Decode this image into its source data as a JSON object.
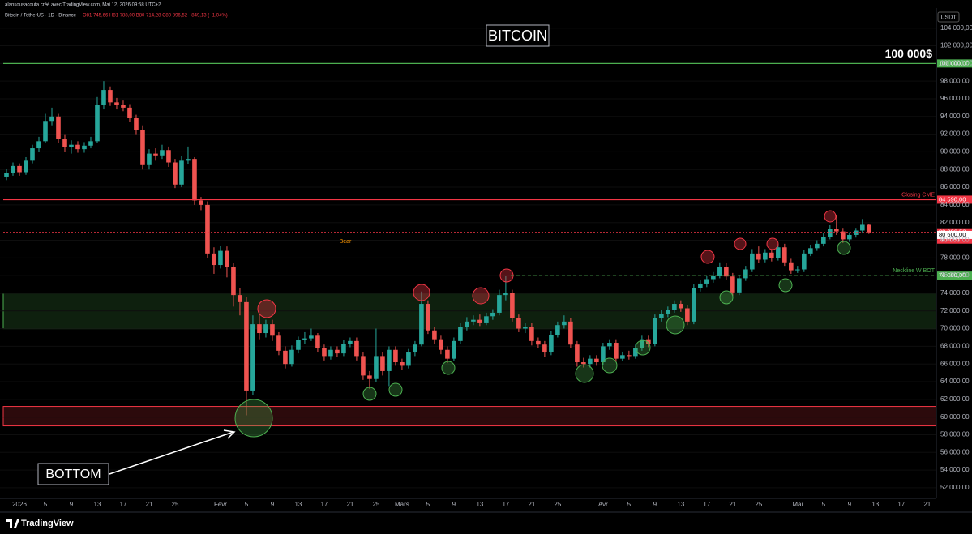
{
  "header": {
    "credit": "alansousacouta créé avec TradingView.com, Mai 12, 2026 09:58 UTC+2",
    "symbol": "Bitcoin / TetherUS · 1D · Binance",
    "ohlc": "O81 745,66 H81 788,00 B80 714,28 C80 896,52 −849,13 (−1,04%)",
    "currency": "USDT"
  },
  "footer": {
    "brand": "TradingView"
  },
  "chart_data": {
    "type": "candlestick",
    "title": "BITCOIN",
    "up_color": "#26a69a",
    "down_color": "#ef5350",
    "candles": [
      [
        87200,
        88100,
        86800,
        87600
      ],
      [
        87600,
        88800,
        87300,
        88400
      ],
      [
        88400,
        88700,
        87300,
        87700
      ],
      [
        87700,
        89400,
        87400,
        89000
      ],
      [
        89000,
        90800,
        88700,
        90400
      ],
      [
        90400,
        91700,
        90000,
        91200
      ],
      [
        91200,
        94300,
        91000,
        93500
      ],
      [
        93500,
        95000,
        93000,
        94000
      ],
      [
        94000,
        94300,
        91000,
        91500
      ],
      [
        91500,
        92000,
        90000,
        90500
      ],
      [
        90500,
        91300,
        89800,
        90800
      ],
      [
        90800,
        91200,
        89900,
        90300
      ],
      [
        90300,
        91100,
        89900,
        90700
      ],
      [
        90700,
        91700,
        90400,
        91200
      ],
      [
        91200,
        96200,
        91000,
        95300
      ],
      [
        95300,
        98000,
        94800,
        97000
      ],
      [
        97000,
        97400,
        95200,
        95600
      ],
      [
        95600,
        96100,
        94800,
        95300
      ],
      [
        95300,
        95800,
        94600,
        95000
      ],
      [
        95000,
        95400,
        93400,
        93800
      ],
      [
        93800,
        94200,
        92000,
        92500
      ],
      [
        92500,
        93000,
        88000,
        88500
      ],
      [
        88500,
        90300,
        88000,
        89800
      ],
      [
        89800,
        90400,
        89000,
        89600
      ],
      [
        89600,
        90800,
        89200,
        90200
      ],
      [
        90200,
        90600,
        88300,
        88800
      ],
      [
        88800,
        89200,
        85900,
        86300
      ],
      [
        86300,
        89500,
        86000,
        89000
      ],
      [
        89000,
        90600,
        88600,
        89200
      ],
      [
        89200,
        89400,
        84000,
        84500
      ],
      [
        84500,
        84900,
        83400,
        84000
      ],
      [
        84000,
        84400,
        78000,
        78500
      ],
      [
        78500,
        79200,
        76200,
        77200
      ],
      [
        77200,
        79400,
        76800,
        78800
      ],
      [
        78800,
        79300,
        75800,
        77000
      ],
      [
        77000,
        77400,
        72500,
        73800
      ],
      [
        73800,
        74600,
        71500,
        73000
      ],
      [
        73000,
        73600,
        60200,
        63000
      ],
      [
        63000,
        71500,
        62500,
        70500
      ],
      [
        70500,
        71600,
        68800,
        69500
      ],
      [
        69500,
        71000,
        69000,
        70500
      ],
      [
        70500,
        71000,
        68600,
        69200
      ],
      [
        69200,
        69600,
        67000,
        67500
      ],
      [
        67500,
        68000,
        65500,
        66000
      ],
      [
        66000,
        68100,
        65700,
        67600
      ],
      [
        67600,
        69100,
        67200,
        68700
      ],
      [
        68700,
        69600,
        68300,
        68900
      ],
      [
        68900,
        70000,
        68600,
        69200
      ],
      [
        69200,
        69500,
        67300,
        67800
      ],
      [
        67800,
        68200,
        66400,
        66900
      ],
      [
        66900,
        68000,
        66500,
        67600
      ],
      [
        67600,
        68000,
        66800,
        67200
      ],
      [
        67200,
        68700,
        66900,
        68300
      ],
      [
        68300,
        69000,
        67900,
        68600
      ],
      [
        68600,
        69000,
        66400,
        66900
      ],
      [
        66900,
        67300,
        64200,
        64700
      ],
      [
        64700,
        65200,
        63200,
        64300
      ],
      [
        64300,
        70000,
        64000,
        66900
      ],
      [
        66900,
        67300,
        64700,
        65200
      ],
      [
        65200,
        68000,
        63500,
        67600
      ],
      [
        67600,
        68000,
        65800,
        66200
      ],
      [
        66200,
        66600,
        65300,
        65800
      ],
      [
        65800,
        67700,
        65500,
        67300
      ],
      [
        67300,
        68600,
        66900,
        68200
      ],
      [
        68200,
        74200,
        68000,
        72800
      ],
      [
        72800,
        73200,
        69400,
        69800
      ],
      [
        69800,
        70200,
        68300,
        68800
      ],
      [
        68800,
        69200,
        67100,
        67600
      ],
      [
        67600,
        68000,
        66100,
        66600
      ],
      [
        66600,
        69000,
        66300,
        68600
      ],
      [
        68600,
        70600,
        68300,
        70200
      ],
      [
        70200,
        71300,
        69800,
        70800
      ],
      [
        70800,
        71500,
        70400,
        71000
      ],
      [
        71000,
        71600,
        70300,
        70700
      ],
      [
        70700,
        71800,
        70400,
        71400
      ],
      [
        71400,
        72200,
        71000,
        71800
      ],
      [
        71800,
        74400,
        71500,
        73800
      ],
      [
        73800,
        76000,
        73200,
        74000
      ],
      [
        74000,
        74400,
        70800,
        71200
      ],
      [
        71200,
        71600,
        69600,
        70000
      ],
      [
        70000,
        70600,
        69500,
        70200
      ],
      [
        70200,
        70600,
        68100,
        68600
      ],
      [
        68600,
        69000,
        67800,
        68200
      ],
      [
        68200,
        68600,
        66800,
        67300
      ],
      [
        67300,
        69700,
        67000,
        69300
      ],
      [
        69300,
        70800,
        69000,
        70400
      ],
      [
        70400,
        71500,
        70000,
        70800
      ],
      [
        70800,
        71200,
        67800,
        68200
      ],
      [
        68200,
        68600,
        65700,
        66200
      ],
      [
        66200,
        66700,
        65600,
        66000
      ],
      [
        66000,
        67000,
        65600,
        66600
      ],
      [
        66600,
        67000,
        65800,
        66200
      ],
      [
        66200,
        68400,
        65900,
        68000
      ],
      [
        68000,
        68800,
        67600,
        68400
      ],
      [
        68400,
        68800,
        66200,
        66600
      ],
      [
        66600,
        67400,
        66300,
        67000
      ],
      [
        67000,
        67500,
        66500,
        66900
      ],
      [
        66900,
        68200,
        66600,
        67800
      ],
      [
        67800,
        69200,
        67500,
        68800
      ],
      [
        68800,
        69200,
        67900,
        68300
      ],
      [
        68300,
        71600,
        68000,
        71200
      ],
      [
        71200,
        72100,
        70800,
        71700
      ],
      [
        71700,
        72500,
        71300,
        72100
      ],
      [
        72100,
        73200,
        71800,
        72800
      ],
      [
        72800,
        73200,
        71900,
        72300
      ],
      [
        72300,
        72700,
        70400,
        70800
      ],
      [
        70800,
        75000,
        70500,
        74600
      ],
      [
        74600,
        75500,
        74200,
        75100
      ],
      [
        75100,
        76000,
        74700,
        75600
      ],
      [
        75600,
        76400,
        75200,
        76000
      ],
      [
        76000,
        77500,
        75700,
        77000
      ],
      [
        77000,
        77400,
        75500,
        75900
      ],
      [
        75900,
        76300,
        73700,
        74100
      ],
      [
        74100,
        76100,
        73800,
        75700
      ],
      [
        75700,
        77100,
        75400,
        76700
      ],
      [
        76700,
        79000,
        76400,
        78500
      ],
      [
        78500,
        79300,
        77400,
        77800
      ],
      [
        77800,
        79000,
        77500,
        78600
      ],
      [
        78600,
        79000,
        77600,
        78000
      ],
      [
        78000,
        79600,
        77700,
        79200
      ],
      [
        79200,
        79600,
        77100,
        77500
      ],
      [
        77500,
        77900,
        76200,
        76600
      ],
      [
        76600,
        77100,
        76300,
        76700
      ],
      [
        76700,
        78900,
        76400,
        78500
      ],
      [
        78500,
        79500,
        78200,
        79100
      ],
      [
        79100,
        80000,
        78800,
        79600
      ],
      [
        79600,
        80800,
        79300,
        80400
      ],
      [
        80400,
        81700,
        80100,
        81300
      ],
      [
        81300,
        82900,
        80600,
        81000
      ],
      [
        81000,
        81400,
        79700,
        80100
      ],
      [
        80100,
        80900,
        79800,
        80600
      ],
      [
        80600,
        81400,
        80300,
        81100
      ],
      [
        81100,
        82400,
        80800,
        81745.66
      ],
      [
        81745.66,
        81788,
        80714.28,
        80896.52
      ]
    ],
    "ylim": [
      50800,
      105900
    ],
    "yticks": [
      {
        "value": 52000,
        "label": "52 000,00"
      },
      {
        "value": 54000,
        "label": "54 000,00"
      },
      {
        "value": 56000,
        "label": "56 000,00"
      },
      {
        "value": 58000,
        "label": "58 000,00"
      },
      {
        "value": 60000,
        "label": "60 000,00"
      },
      {
        "value": 62000,
        "label": "62 000,00"
      },
      {
        "value": 64000,
        "label": "64 000,00"
      },
      {
        "value": 66000,
        "label": "66 000,00"
      },
      {
        "value": 68000,
        "label": "68 000,00"
      },
      {
        "value": 70000,
        "label": "70 000,00"
      },
      {
        "value": 72000,
        "label": "72 000,00"
      },
      {
        "value": 74000,
        "label": "74 000,00"
      },
      {
        "value": 76000,
        "label": "76 000,00"
      },
      {
        "value": 78000,
        "label": "78 000,00"
      },
      {
        "value": 80000,
        "label": "80 000,00"
      },
      {
        "value": 82000,
        "label": "82 000,00"
      },
      {
        "value": 84000,
        "label": "84 000,00"
      },
      {
        "value": 86000,
        "label": "86 000,00"
      },
      {
        "value": 88000,
        "label": "88 000,00"
      },
      {
        "value": 90000,
        "label": "90 000,00"
      },
      {
        "value": 92000,
        "label": "92 000,00"
      },
      {
        "value": 94000,
        "label": "94 000,00"
      },
      {
        "value": 96000,
        "label": "96 000,00"
      },
      {
        "value": 98000,
        "label": "98 000,00"
      },
      {
        "value": 100000,
        "label": "100 000,00"
      },
      {
        "value": 102000,
        "label": "102 000,00"
      },
      {
        "value": 104000,
        "label": "104 000,00"
      }
    ],
    "xlim": [
      -1,
      143.4
    ],
    "xticks": [
      {
        "value": 2,
        "label": "2026"
      },
      {
        "value": 6,
        "label": "5"
      },
      {
        "value": 10,
        "label": "9"
      },
      {
        "value": 14,
        "label": "13"
      },
      {
        "value": 18,
        "label": "17"
      },
      {
        "value": 22,
        "label": "21"
      },
      {
        "value": 26,
        "label": "25"
      },
      {
        "value": 33,
        "label": "Févr"
      },
      {
        "value": 37,
        "label": "5"
      },
      {
        "value": 41,
        "label": "9"
      },
      {
        "value": 45,
        "label": "13"
      },
      {
        "value": 49,
        "label": "17"
      },
      {
        "value": 53,
        "label": "21"
      },
      {
        "value": 57,
        "label": "25"
      },
      {
        "value": 61,
        "label": "Mars"
      },
      {
        "value": 65,
        "label": "5"
      },
      {
        "value": 69,
        "label": "9"
      },
      {
        "value": 73,
        "label": "13"
      },
      {
        "value": 77,
        "label": "17"
      },
      {
        "value": 81,
        "label": "21"
      },
      {
        "value": 85,
        "label": "25"
      },
      {
        "value": 92,
        "label": "Avr"
      },
      {
        "value": 96,
        "label": "5"
      },
      {
        "value": 100,
        "label": "9"
      },
      {
        "value": 104,
        "label": "13"
      },
      {
        "value": 108,
        "label": "17"
      },
      {
        "value": 112,
        "label": "21"
      },
      {
        "value": 116,
        "label": "25"
      },
      {
        "value": 122,
        "label": "Mai"
      },
      {
        "value": 126,
        "label": "5"
      },
      {
        "value": 130,
        "label": "9"
      },
      {
        "value": 134,
        "label": "13"
      },
      {
        "value": 138,
        "label": "17"
      },
      {
        "value": 142,
        "label": "21"
      }
    ],
    "levels": [
      {
        "value": 100000,
        "label": "100 000,00",
        "color": "#4caf50",
        "style": "solid",
        "text": "100 000$"
      },
      {
        "value": 84590,
        "label": "84 590,00",
        "color": "#f23645",
        "style": "solid",
        "text": "Closing CME"
      },
      {
        "value": 80896.52,
        "label": "80 896,52",
        "color": "#f23645",
        "style": "dotted",
        "text": "14:01:50"
      },
      {
        "value": 80600,
        "label": "80 600,00",
        "color": "#ffffff",
        "style": "none"
      },
      {
        "value": 76000,
        "label": "76 000,00",
        "color": "#4caf50",
        "style": "dashed",
        "text": "Neckline W BOT"
      }
    ],
    "zones": [
      {
        "from": 70000,
        "to": 74000,
        "color": "#4caf50"
      },
      {
        "from": 59000,
        "to": 61200,
        "color": "#f23645"
      }
    ],
    "annotations": {
      "bottom": "BOTTOM",
      "bear": "Bear"
    }
  }
}
